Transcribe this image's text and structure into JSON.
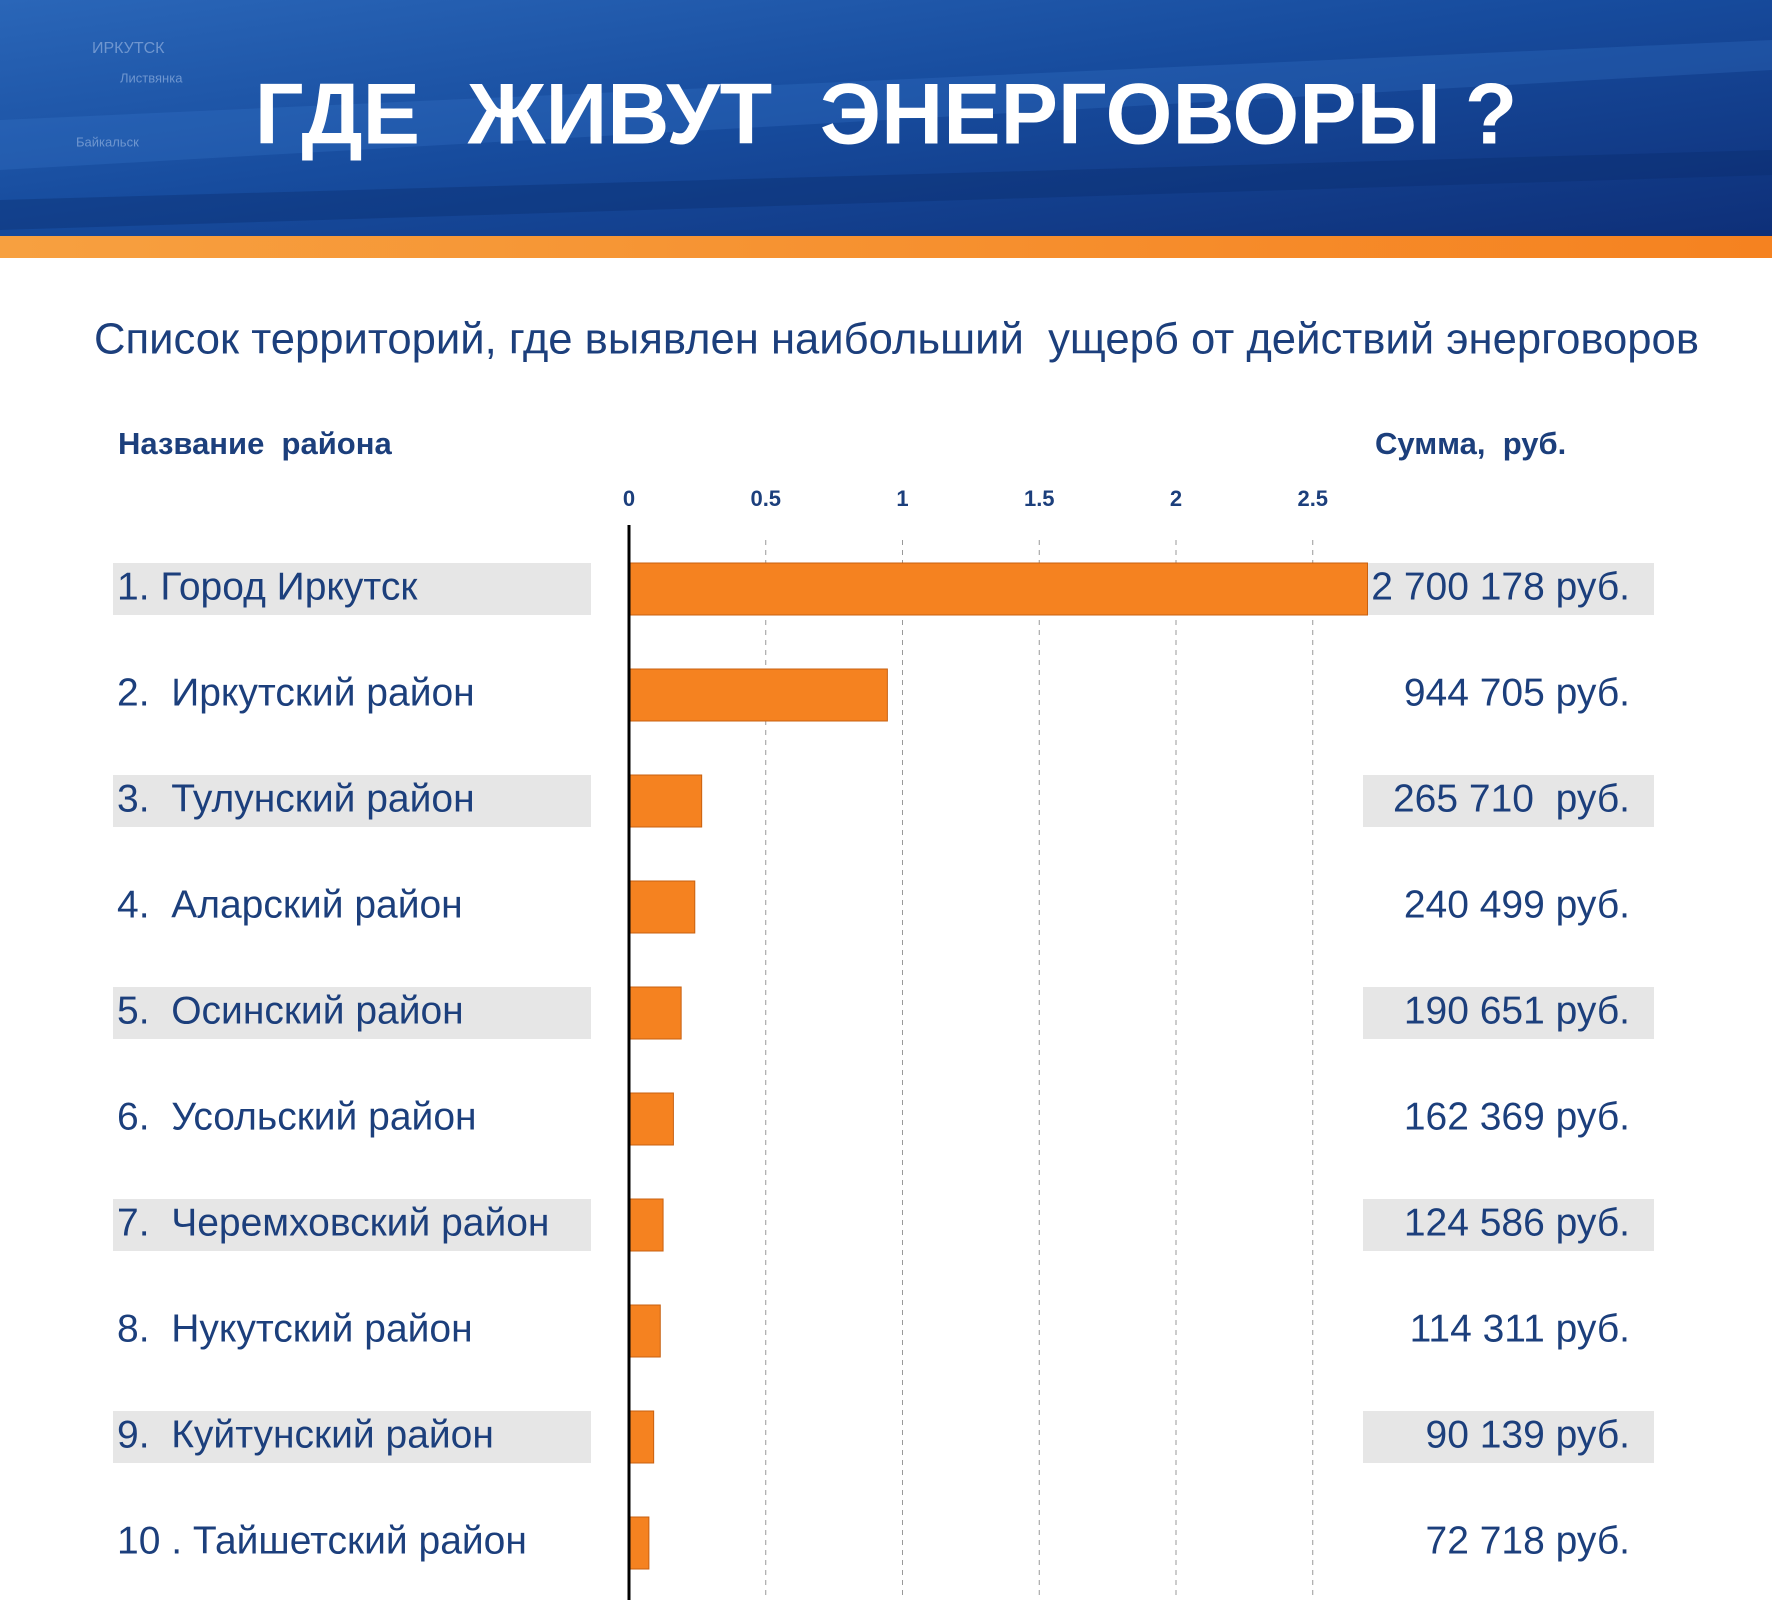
{
  "banner_labels": [
    "ИРКУТСК",
    "Листвянка",
    "Байкальск"
  ],
  "chart_data": {
    "type": "bar",
    "orientation": "horizontal",
    "title": "ГДЕ  ЖИВУТ  ЭНЕРГОВОРЫ ?",
    "subtitle": "Список территорий, где выявлен наибольший  ущерб от действий энерговоров",
    "category_header": "Название  района",
    "value_header": "Сумма,  руб.",
    "categories": [
      "1. Город Иркутск",
      "2.  Иркутский район",
      "3.  Тулунский район",
      "4.  Аларский район",
      "5.  Осинский район",
      "6.  Усольский район",
      "7.  Черемховский район",
      "8.  Нукутский район",
      "9.  Куйтунский район",
      "10 . Тайшетский район"
    ],
    "values": [
      2.700178,
      0.944705,
      0.26571,
      0.240499,
      0.190651,
      0.162369,
      0.124586,
      0.114311,
      0.090139,
      0.072718
    ],
    "value_labels": [
      "2 700 178 руб.",
      "944 705 руб.",
      "265 710  руб.",
      "240 499 руб.",
      "190 651 руб.",
      "162 369 руб.",
      "124 586 руб.",
      "114 311 руб.",
      "90 139 руб.",
      "72 718 руб."
    ],
    "color": "#f58220",
    "xlim": [
      0,
      2.7
    ],
    "xticks": [
      0,
      0.5,
      1,
      1.5,
      2,
      2.5
    ],
    "grid": true
  }
}
